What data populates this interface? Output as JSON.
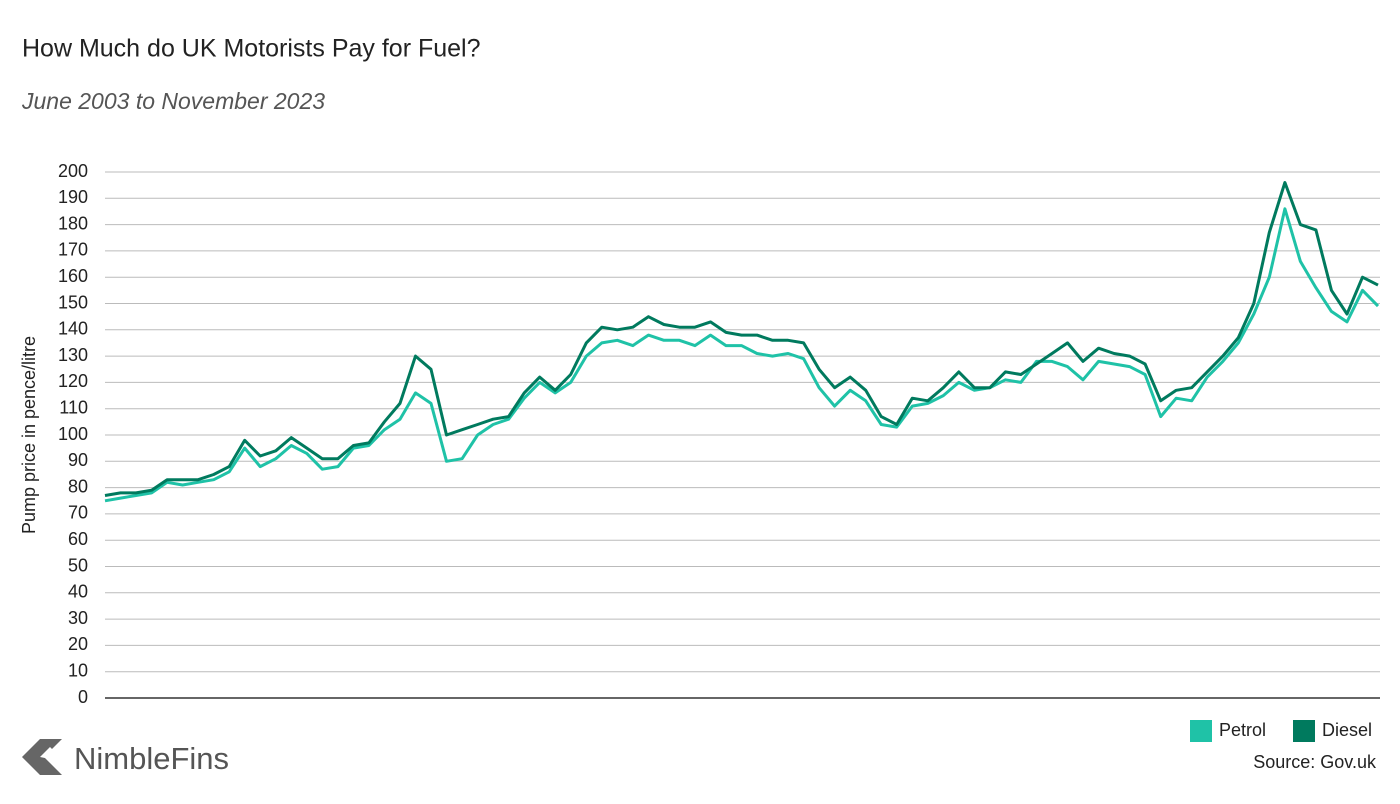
{
  "chart_data": {
    "type": "line",
    "title": "How Much do UK Motorists Pay for Fuel?",
    "subtitle": "June 2003 to November 2023",
    "y_label": "Pump price in pence/litre",
    "source": "Source: Gov.uk",
    "brand": "NimbleFins",
    "ylim": [
      0,
      200
    ],
    "yticks": [
      0,
      10,
      20,
      30,
      40,
      50,
      60,
      70,
      80,
      90,
      100,
      110,
      120,
      130,
      140,
      150,
      160,
      170,
      180,
      190,
      200
    ],
    "grid": true,
    "legend": "bottom-right",
    "series": [
      {
        "name": "Petrol",
        "color": "#1fc2a7",
        "values": [
          75,
          76,
          77,
          78,
          82,
          81,
          82,
          83,
          86,
          95,
          88,
          91,
          96,
          93,
          87,
          88,
          95,
          96,
          102,
          106,
          116,
          112,
          90,
          91,
          100,
          104,
          106,
          114,
          120,
          116,
          120,
          130,
          135,
          136,
          134,
          138,
          136,
          136,
          134,
          138,
          134,
          134,
          131,
          130,
          131,
          129,
          118,
          111,
          117,
          113,
          104,
          103,
          111,
          112,
          115,
          120,
          117,
          118,
          121,
          120,
          128,
          128,
          126,
          121,
          128,
          127,
          126,
          123,
          107,
          114,
          113,
          122,
          128,
          135,
          146,
          160,
          186,
          166,
          156,
          147,
          143,
          155,
          149
        ]
      },
      {
        "name": "Diesel",
        "color": "#007a5e",
        "values": [
          77,
          78,
          78,
          79,
          83,
          83,
          83,
          85,
          88,
          98,
          92,
          94,
          99,
          95,
          91,
          91,
          96,
          97,
          105,
          112,
          130,
          125,
          100,
          102,
          104,
          106,
          107,
          116,
          122,
          117,
          123,
          135,
          141,
          140,
          141,
          145,
          142,
          141,
          141,
          143,
          139,
          138,
          138,
          136,
          136,
          135,
          125,
          118,
          122,
          117,
          107,
          104,
          114,
          113,
          118,
          124,
          118,
          118,
          124,
          123,
          127,
          131,
          135,
          128,
          133,
          131,
          130,
          127,
          113,
          117,
          118,
          124,
          130,
          137,
          150,
          177,
          196,
          180,
          178,
          155,
          146,
          160,
          157
        ]
      }
    ]
  }
}
